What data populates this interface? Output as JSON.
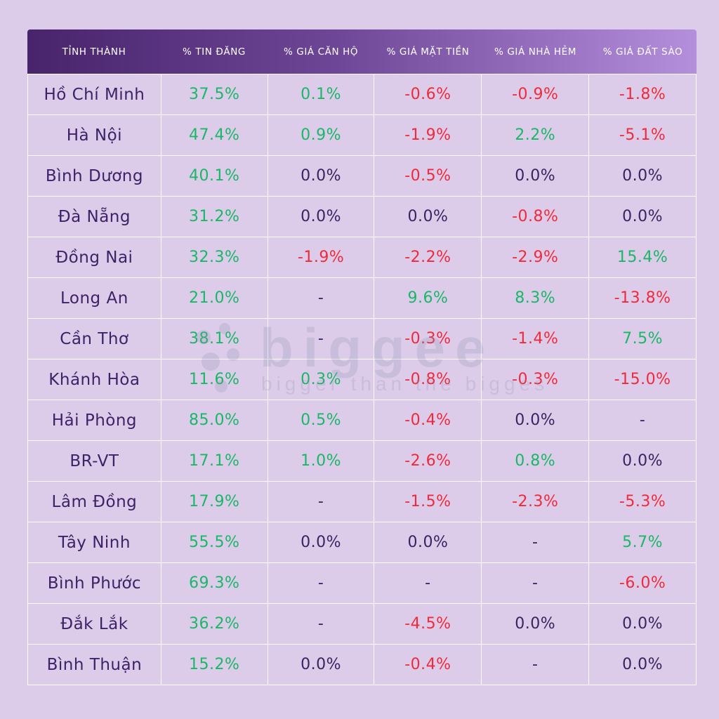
{
  "chart_data": {
    "type": "table",
    "columns": [
      "TỈNH THÀNH",
      "% TIN ĐĂNG",
      "% GIÁ CĂN HỘ",
      "% GIÁ MẶT TIỀN",
      "% GIÁ NHÀ HẺM",
      "% GIÁ ĐẤT SÀO"
    ],
    "rows": [
      {
        "name": "Hồ Chí Minh",
        "values": [
          "37.5%",
          "0.1%",
          "-0.6%",
          "-0.9%",
          "-1.8%"
        ]
      },
      {
        "name": "Hà Nội",
        "values": [
          "47.4%",
          "0.9%",
          "-1.9%",
          "2.2%",
          "-5.1%"
        ]
      },
      {
        "name": "Bình Dương",
        "values": [
          "40.1%",
          "0.0%",
          "-0.5%",
          "0.0%",
          "0.0%"
        ]
      },
      {
        "name": "Đà Nẵng",
        "values": [
          "31.2%",
          "0.0%",
          "0.0%",
          "-0.8%",
          "0.0%"
        ]
      },
      {
        "name": "Đồng Nai",
        "values": [
          "32.3%",
          "-1.9%",
          "-2.2%",
          "-2.9%",
          "15.4%"
        ]
      },
      {
        "name": "Long An",
        "values": [
          "21.0%",
          "-",
          "9.6%",
          "8.3%",
          "-13.8%"
        ]
      },
      {
        "name": "Cần Thơ",
        "values": [
          "38.1%",
          "-",
          "-0.3%",
          "-1.4%",
          "7.5%"
        ]
      },
      {
        "name": "Khánh Hòa",
        "values": [
          "11.6%",
          "0.3%",
          "-0.8%",
          "-0.3%",
          "-15.0%"
        ]
      },
      {
        "name": "Hải Phòng",
        "values": [
          "85.0%",
          "0.5%",
          "-0.4%",
          "0.0%",
          "-"
        ]
      },
      {
        "name": "BR-VT",
        "values": [
          "17.1%",
          "1.0%",
          "-2.6%",
          "0.8%",
          "0.0%"
        ]
      },
      {
        "name": "Lâm Đồng",
        "values": [
          "17.9%",
          "-",
          "-1.5%",
          "-2.3%",
          "-5.3%"
        ]
      },
      {
        "name": "Tây Ninh",
        "values": [
          "55.5%",
          "0.0%",
          "0.0%",
          "-",
          "5.7%"
        ]
      },
      {
        "name": "Bình Phước",
        "values": [
          "69.3%",
          "-",
          "-",
          "-",
          "-6.0%"
        ]
      },
      {
        "name": "Đắk Lắk",
        "values": [
          "36.2%",
          "-",
          "-4.5%",
          "0.0%",
          "0.0%"
        ]
      },
      {
        "name": "Bình Thuận",
        "values": [
          "15.2%",
          "0.0%",
          "-0.4%",
          "-",
          "0.0%"
        ]
      }
    ]
  },
  "watermark": {
    "brand": "biggee",
    "tagline": "bigger than the biggest"
  },
  "colors": {
    "positive": "#19b866",
    "negative": "#f02a3a",
    "neutral": "#3a2460",
    "background": "#dccbe9",
    "header_start": "#48246b",
    "header_end": "#b48fdc"
  }
}
